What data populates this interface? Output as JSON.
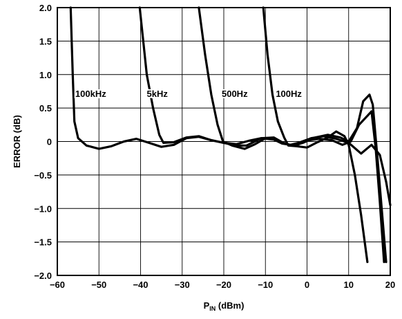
{
  "chart_data": {
    "type": "line",
    "title": "",
    "xlabel_main": "P",
    "xlabel_sub": "IN",
    "xlabel_unit": " (dBm)",
    "ylabel": "ERROR (dB)",
    "xlim": [
      -60,
      20
    ],
    "ylim": [
      -2.0,
      2.0
    ],
    "grid": true,
    "x_ticks": [
      -60,
      -50,
      -40,
      -30,
      -20,
      -10,
      0,
      10,
      20
    ],
    "x_tick_labels": [
      "−60",
      "−50",
      "−40",
      "−30",
      "−20",
      "−10",
      "0",
      "10",
      "20"
    ],
    "y_ticks": [
      2.0,
      1.5,
      1.0,
      0.5,
      0,
      -0.5,
      -1.0,
      -1.5,
      -2.0
    ],
    "y_tick_labels": [
      "2.0",
      "1.5",
      "1.0",
      "0.5",
      "0",
      "−0.5",
      "−1.0",
      "−1.5",
      "−2.0"
    ],
    "series": [
      {
        "name": "100kHz",
        "label_at": [
          -55.7,
          0.72
        ],
        "points": [
          [
            -56.8,
            2.0
          ],
          [
            -56.3,
            1.0
          ],
          [
            -55.9,
            0.3
          ],
          [
            -55.0,
            0.05
          ],
          [
            -53.0,
            -0.06
          ],
          [
            -50.0,
            -0.11
          ],
          [
            -47.0,
            -0.07
          ],
          [
            -44.0,
            0.0
          ],
          [
            -41.0,
            0.04
          ],
          [
            -38.0,
            -0.02
          ],
          [
            -35.0,
            -0.08
          ],
          [
            -32.0,
            -0.05
          ],
          [
            -29.0,
            0.05
          ],
          [
            -26.0,
            0.07
          ],
          [
            -23.0,
            0.02
          ],
          [
            -20.0,
            -0.02
          ],
          [
            -17.0,
            -0.04
          ],
          [
            -14.0,
            0.01
          ],
          [
            -11.0,
            0.05
          ],
          [
            -8.0,
            0.03
          ],
          [
            -6.0,
            -0.02
          ],
          [
            -4.0,
            -0.05
          ],
          [
            -2.0,
            -0.02
          ],
          [
            1.0,
            0.05
          ],
          [
            4.0,
            0.08
          ],
          [
            7.0,
            0.04
          ],
          [
            10.0,
            -0.02
          ],
          [
            13.0,
            -0.18
          ],
          [
            15.5,
            -0.05
          ],
          [
            17.5,
            -0.2
          ],
          [
            19.0,
            -0.6
          ],
          [
            20.0,
            -0.95
          ]
        ]
      },
      {
        "name": "5kHz",
        "label_at": [
          -38.5,
          0.72
        ],
        "points": [
          [
            -40.2,
            2.0
          ],
          [
            -38.5,
            1.0
          ],
          [
            -37.0,
            0.5
          ],
          [
            -35.5,
            0.1
          ],
          [
            -34.5,
            -0.02
          ],
          [
            -32.0,
            -0.01
          ],
          [
            -29.0,
            0.06
          ],
          [
            -26.0,
            0.08
          ],
          [
            -23.0,
            0.02
          ],
          [
            -20.0,
            -0.02
          ],
          [
            -17.0,
            -0.06
          ],
          [
            -14.5,
            -0.06
          ],
          [
            -11.0,
            0.05
          ],
          [
            -8.0,
            0.06
          ],
          [
            -6.0,
            -0.01
          ],
          [
            -4.0,
            -0.06
          ],
          [
            -1.0,
            -0.02
          ],
          [
            2.0,
            0.06
          ],
          [
            5.0,
            0.1
          ],
          [
            8.0,
            0.06
          ],
          [
            10.0,
            0.0
          ],
          [
            12.0,
            0.2
          ],
          [
            13.5,
            0.6
          ],
          [
            15.0,
            0.7
          ],
          [
            15.8,
            0.55
          ],
          [
            17.0,
            -0.3
          ],
          [
            18.2,
            -1.2
          ],
          [
            19.0,
            -1.8
          ]
        ]
      },
      {
        "name": "500Hz",
        "label_at": [
          -20.5,
          0.72
        ],
        "points": [
          [
            -26.0,
            2.0
          ],
          [
            -24.5,
            1.3
          ],
          [
            -23.0,
            0.7
          ],
          [
            -21.5,
            0.25
          ],
          [
            -20.2,
            0.0
          ],
          [
            -18.0,
            -0.06
          ],
          [
            -15.0,
            -0.11
          ],
          [
            -12.5,
            -0.04
          ],
          [
            -10.0,
            0.05
          ],
          [
            -8.0,
            0.03
          ],
          [
            -6.0,
            -0.03
          ],
          [
            -4.0,
            -0.05
          ],
          [
            -2.0,
            -0.04
          ],
          [
            0.5,
            0.02
          ],
          [
            3.0,
            0.04
          ],
          [
            6.0,
            0.02
          ],
          [
            8.5,
            -0.05
          ],
          [
            10.5,
            0.0
          ],
          [
            12.5,
            0.25
          ],
          [
            15.5,
            0.45
          ],
          [
            16.5,
            -0.1
          ],
          [
            17.5,
            -0.9
          ],
          [
            18.5,
            -1.8
          ]
        ]
      },
      {
        "name": "100Hz",
        "label_at": [
          -7.5,
          0.72
        ],
        "points": [
          [
            -10.5,
            2.0
          ],
          [
            -9.5,
            1.3
          ],
          [
            -8.3,
            0.7
          ],
          [
            -7.0,
            0.3
          ],
          [
            -5.5,
            0.06
          ],
          [
            -4.5,
            -0.06
          ],
          [
            -2.5,
            -0.07
          ],
          [
            0.0,
            -0.09
          ],
          [
            2.5,
            -0.01
          ],
          [
            5.0,
            0.06
          ],
          [
            7.0,
            0.15
          ],
          [
            9.0,
            0.08
          ],
          [
            10.0,
            -0.05
          ],
          [
            11.5,
            -0.5
          ],
          [
            13.0,
            -1.1
          ],
          [
            14.5,
            -1.8
          ]
        ]
      }
    ]
  }
}
